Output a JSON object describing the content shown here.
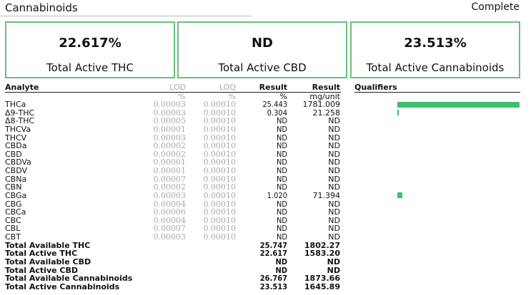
{
  "header": {
    "title": "Cannabinoids",
    "status": "Complete"
  },
  "summary": [
    {
      "value": "22.617%",
      "label": "Total Active THC"
    },
    {
      "value": "ND",
      "label": "Total Active CBD"
    },
    {
      "value": "23.513%",
      "label": "Total Active Cannabinoids"
    }
  ],
  "table": {
    "headers": {
      "analyte": "Analyte",
      "lod": "LOD",
      "loq": "LOQ",
      "result_pct": "Result",
      "result_mg": "Result",
      "qualifiers": "Qualifiers"
    },
    "units": {
      "lod": "%",
      "loq": "%",
      "result_pct": "%",
      "result_mg": "mg/unit"
    },
    "rows": [
      {
        "analyte": "THCa",
        "lod": "0.00003",
        "loq": "0.00010",
        "pct": "25.443",
        "mg": "1781.009"
      },
      {
        "analyte": "Δ9-THC",
        "lod": "0.00003",
        "loq": "0.00010",
        "pct": "0.304",
        "mg": "21.258"
      },
      {
        "analyte": "Δ8-THC",
        "lod": "0.00005",
        "loq": "0.00010",
        "pct": "ND",
        "mg": "ND"
      },
      {
        "analyte": "THCVa",
        "lod": "0.00001",
        "loq": "0.00010",
        "pct": "ND",
        "mg": "ND"
      },
      {
        "analyte": "THCV",
        "lod": "0.00003",
        "loq": "0.00010",
        "pct": "ND",
        "mg": "ND"
      },
      {
        "analyte": "CBDa",
        "lod": "0.00002",
        "loq": "0.00010",
        "pct": "ND",
        "mg": "ND"
      },
      {
        "analyte": "CBD",
        "lod": "0.00002",
        "loq": "0.00010",
        "pct": "ND",
        "mg": "ND"
      },
      {
        "analyte": "CBDVa",
        "lod": "0.00001",
        "loq": "0.00010",
        "pct": "ND",
        "mg": "ND"
      },
      {
        "analyte": "CBDV",
        "lod": "0.00001",
        "loq": "0.00010",
        "pct": "ND",
        "mg": "ND"
      },
      {
        "analyte": "CBNa",
        "lod": "0.00007",
        "loq": "0.00010",
        "pct": "ND",
        "mg": "ND"
      },
      {
        "analyte": "CBN",
        "lod": "0.00002",
        "loq": "0.00010",
        "pct": "ND",
        "mg": "ND"
      },
      {
        "analyte": "CBGa",
        "lod": "0.00003",
        "loq": "0.00010",
        "pct": "1.020",
        "mg": "71.394"
      },
      {
        "analyte": "CBG",
        "lod": "0.00004",
        "loq": "0.00010",
        "pct": "ND",
        "mg": "ND"
      },
      {
        "analyte": "CBCa",
        "lod": "0.00006",
        "loq": "0.00010",
        "pct": "ND",
        "mg": "ND"
      },
      {
        "analyte": "CBC",
        "lod": "0.00004",
        "loq": "0.00010",
        "pct": "ND",
        "mg": "ND"
      },
      {
        "analyte": "CBL",
        "lod": "0.00007",
        "loq": "0.00010",
        "pct": "ND",
        "mg": "ND"
      },
      {
        "analyte": "CBT",
        "lod": "0.00003",
        "loq": "0.00010",
        "pct": "ND",
        "mg": "ND"
      }
    ],
    "totals": [
      {
        "analyte": "Total Available THC",
        "pct": "25.747",
        "mg": "1802.27"
      },
      {
        "analyte": "Total Active THC",
        "pct": "22.617",
        "mg": "1583.20"
      },
      {
        "analyte": "Total Available CBD",
        "pct": "ND",
        "mg": "ND"
      },
      {
        "analyte": "Total Active CBD",
        "pct": "ND",
        "mg": "ND"
      },
      {
        "analyte": "Total Available Cannabinoids",
        "pct": "26.767",
        "mg": "1873.66"
      },
      {
        "analyte": "Total Active Cannabinoids",
        "pct": "23.513",
        "mg": "1645.89"
      }
    ]
  },
  "bars": {
    "color": "#3dbf6e",
    "scale_max_pct": 25.443,
    "values": [
      {
        "analyte": "THCa",
        "pct": 25.443
      },
      {
        "analyte": "Δ9-THC",
        "pct": 0.304
      },
      {
        "analyte": "CBGa",
        "pct": 1.02
      }
    ]
  }
}
